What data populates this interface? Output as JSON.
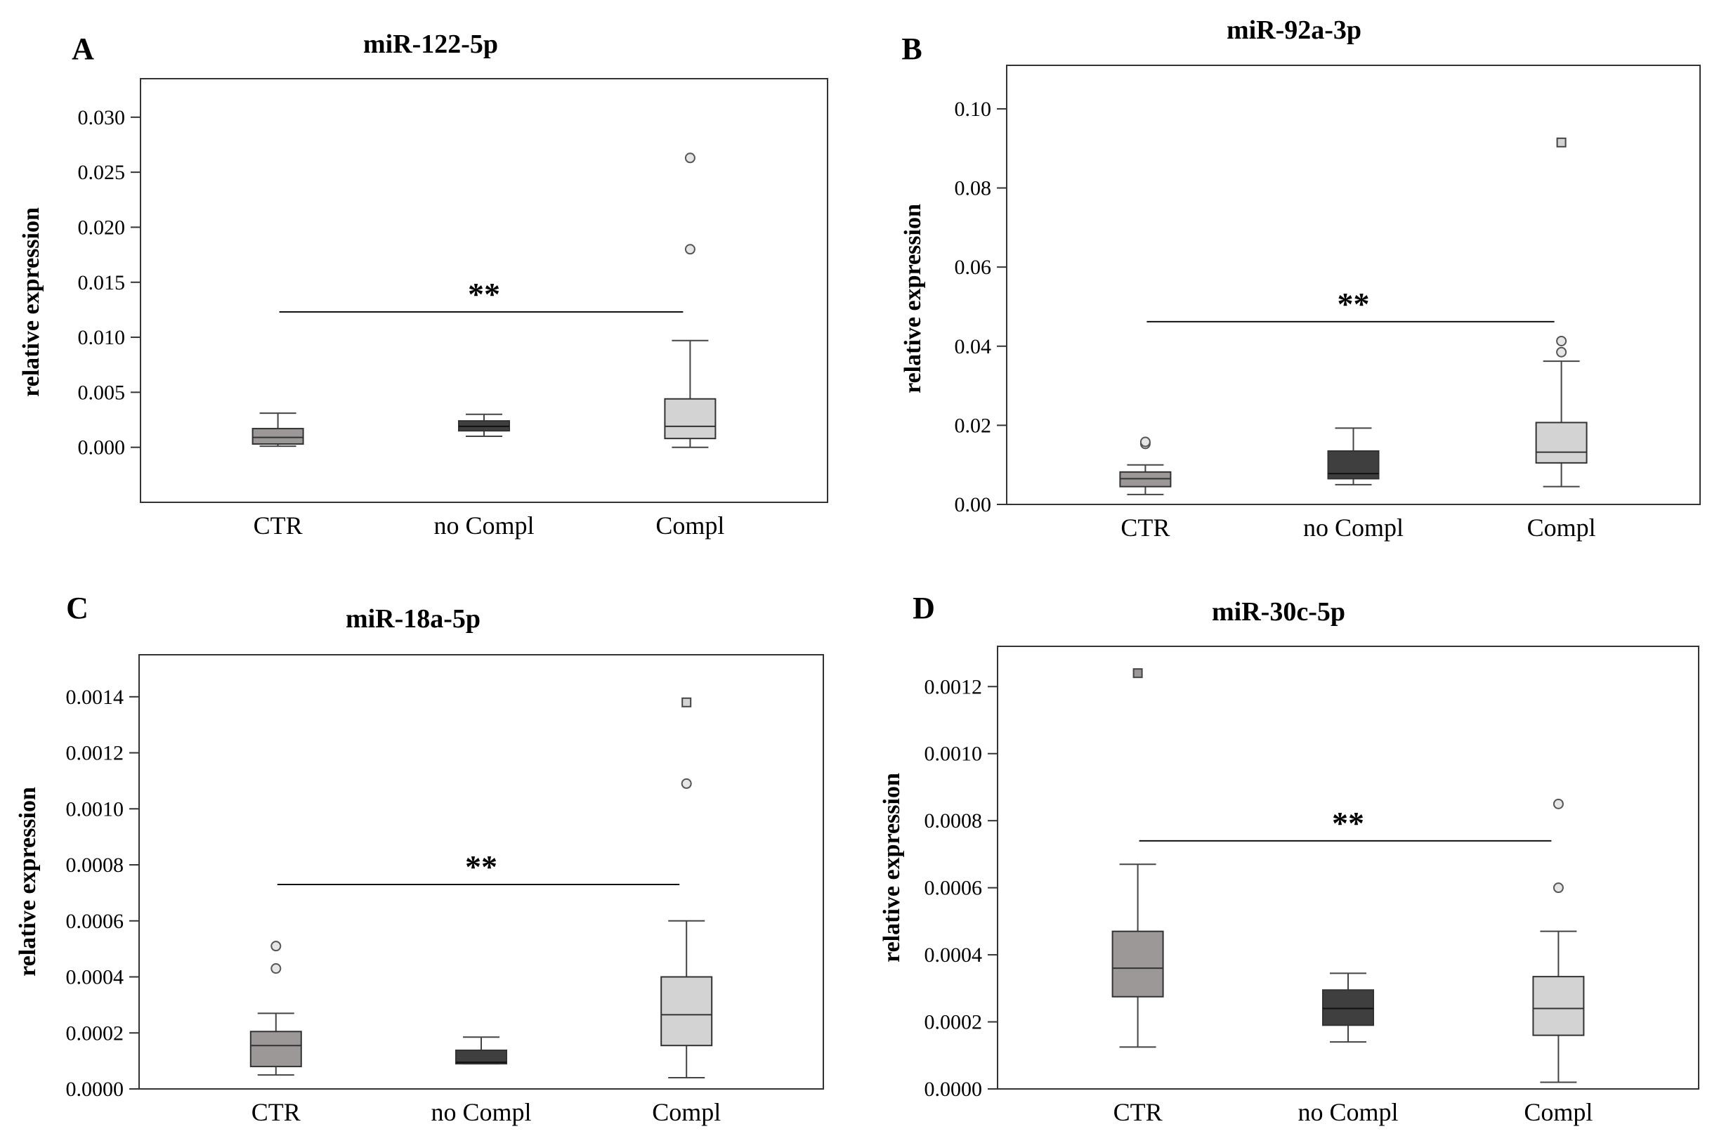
{
  "chart_data": [
    {
      "type": "box",
      "panel": "A",
      "title": "miR-122-5p",
      "ylabel": "relative expression",
      "xlabel": "",
      "categories": [
        "CTR",
        "no Compl",
        "Compl"
      ],
      "colors": [
        "#9c9898",
        "#3f3f3f",
        "#d3d3d3"
      ],
      "ylim": [
        -0.005,
        0.0335
      ],
      "yticks": [
        0.0,
        0.005,
        0.01,
        0.015,
        0.02,
        0.025,
        0.03
      ],
      "ytick_labels": [
        "0.000",
        "0.005",
        "0.010",
        "0.015",
        "0.020",
        "0.025",
        "0.030"
      ],
      "boxes": [
        {
          "min": 0.0001,
          "q1": 0.0003,
          "median": 0.0009,
          "q3": 0.0017,
          "max": 0.0031,
          "outliers": []
        },
        {
          "min": 0.001,
          "q1": 0.0015,
          "median": 0.0019,
          "q3": 0.0024,
          "max": 0.003,
          "outliers": []
        },
        {
          "min": 0.0,
          "q1": 0.0008,
          "median": 0.0019,
          "q3": 0.0044,
          "max": 0.0097,
          "outliers": [
            {
              "value": 0.018,
              "marker": "circle"
            },
            {
              "value": 0.0263,
              "marker": "circle"
            }
          ]
        }
      ],
      "significance": {
        "label": "**",
        "from": "CTR",
        "to": "Compl",
        "y": 0.0123
      }
    },
    {
      "type": "box",
      "panel": "B",
      "title": "miR-92a-3p",
      "ylabel": "relative expression",
      "xlabel": "",
      "categories": [
        "CTR",
        "no Compl",
        "Compl"
      ],
      "colors": [
        "#9c9898",
        "#3f3f3f",
        "#d3d3d3"
      ],
      "ylim": [
        0.0,
        0.111
      ],
      "yticks": [
        0.0,
        0.02,
        0.04,
        0.06,
        0.08,
        0.1
      ],
      "ytick_labels": [
        "0.00",
        "0.02",
        "0.04",
        "0.06",
        "0.08",
        "0.10"
      ],
      "boxes": [
        {
          "min": 0.0025,
          "q1": 0.0045,
          "median": 0.0065,
          "q3": 0.0082,
          "max": 0.01,
          "outliers": [
            {
              "value": 0.0153,
              "marker": "circle"
            },
            {
              "value": 0.0158,
              "marker": "circle"
            }
          ]
        },
        {
          "min": 0.005,
          "q1": 0.0065,
          "median": 0.0078,
          "q3": 0.0135,
          "max": 0.0193,
          "outliers": []
        },
        {
          "min": 0.0045,
          "q1": 0.0105,
          "median": 0.0132,
          "q3": 0.0207,
          "max": 0.0362,
          "outliers": [
            {
              "value": 0.0385,
              "marker": "circle"
            },
            {
              "value": 0.0413,
              "marker": "circle"
            },
            {
              "value": 0.0915,
              "marker": "square"
            }
          ]
        }
      ],
      "significance": {
        "label": "**",
        "from": "CTR",
        "to": "Compl",
        "y": 0.0462
      }
    },
    {
      "type": "box",
      "panel": "C",
      "title": "miR-18a-5p",
      "ylabel": "relative expression",
      "xlabel": "",
      "categories": [
        "CTR",
        "no Compl",
        "Compl"
      ],
      "colors": [
        "#9c9898",
        "#3f3f3f",
        "#d3d3d3"
      ],
      "ylim": [
        0.0,
        0.00155
      ],
      "yticks": [
        0.0,
        0.0002,
        0.0004,
        0.0006,
        0.0008,
        0.001,
        0.0012,
        0.0014
      ],
      "ytick_labels": [
        "0.0000",
        "0.0002",
        "0.0004",
        "0.0006",
        "0.0008",
        "0.0010",
        "0.0012",
        "0.0014"
      ],
      "boxes": [
        {
          "min": 5e-05,
          "q1": 8e-05,
          "median": 0.000155,
          "q3": 0.000205,
          "max": 0.00027,
          "outliers": [
            {
              "value": 0.00043,
              "marker": "circle"
            },
            {
              "value": 0.00051,
              "marker": "circle"
            }
          ]
        },
        {
          "min": 9e-05,
          "q1": 9e-05,
          "median": 9.5e-05,
          "q3": 0.000138,
          "max": 0.000185,
          "outliers": []
        },
        {
          "min": 4e-05,
          "q1": 0.000155,
          "median": 0.000265,
          "q3": 0.0004,
          "max": 0.0006,
          "outliers": [
            {
              "value": 0.00109,
              "marker": "circle"
            },
            {
              "value": 0.00138,
              "marker": "square"
            }
          ]
        }
      ],
      "significance": {
        "label": "**",
        "from": "CTR",
        "to": "Compl",
        "y": 0.00073
      }
    },
    {
      "type": "box",
      "panel": "D",
      "title": "miR-30c-5p",
      "ylabel": "relative expression",
      "xlabel": "",
      "categories": [
        "CTR",
        "no Compl",
        "Compl"
      ],
      "colors": [
        "#9c9898",
        "#3f3f3f",
        "#d3d3d3"
      ],
      "ylim": [
        0.0,
        0.00132
      ],
      "yticks": [
        0.0,
        0.0002,
        0.0004,
        0.0006,
        0.0008,
        0.001,
        0.0012
      ],
      "ytick_labels": [
        "0.0000",
        "0.0002",
        "0.0004",
        "0.0006",
        "0.0008",
        "0.0010",
        "0.0012"
      ],
      "boxes": [
        {
          "min": 0.000125,
          "q1": 0.000275,
          "median": 0.00036,
          "q3": 0.00047,
          "max": 0.00067,
          "outliers": [
            {
              "value": 0.00124,
              "marker": "square"
            }
          ]
        },
        {
          "min": 0.00014,
          "q1": 0.00019,
          "median": 0.00024,
          "q3": 0.000295,
          "max": 0.000345,
          "outliers": []
        },
        {
          "min": 2e-05,
          "q1": 0.00016,
          "median": 0.00024,
          "q3": 0.000335,
          "max": 0.00047,
          "outliers": [
            {
              "value": 0.0006,
              "marker": "circle"
            },
            {
              "value": 0.00085,
              "marker": "circle"
            }
          ]
        }
      ],
      "significance": {
        "label": "**",
        "from": "CTR",
        "to": "Compl",
        "y": 0.00074
      }
    }
  ]
}
